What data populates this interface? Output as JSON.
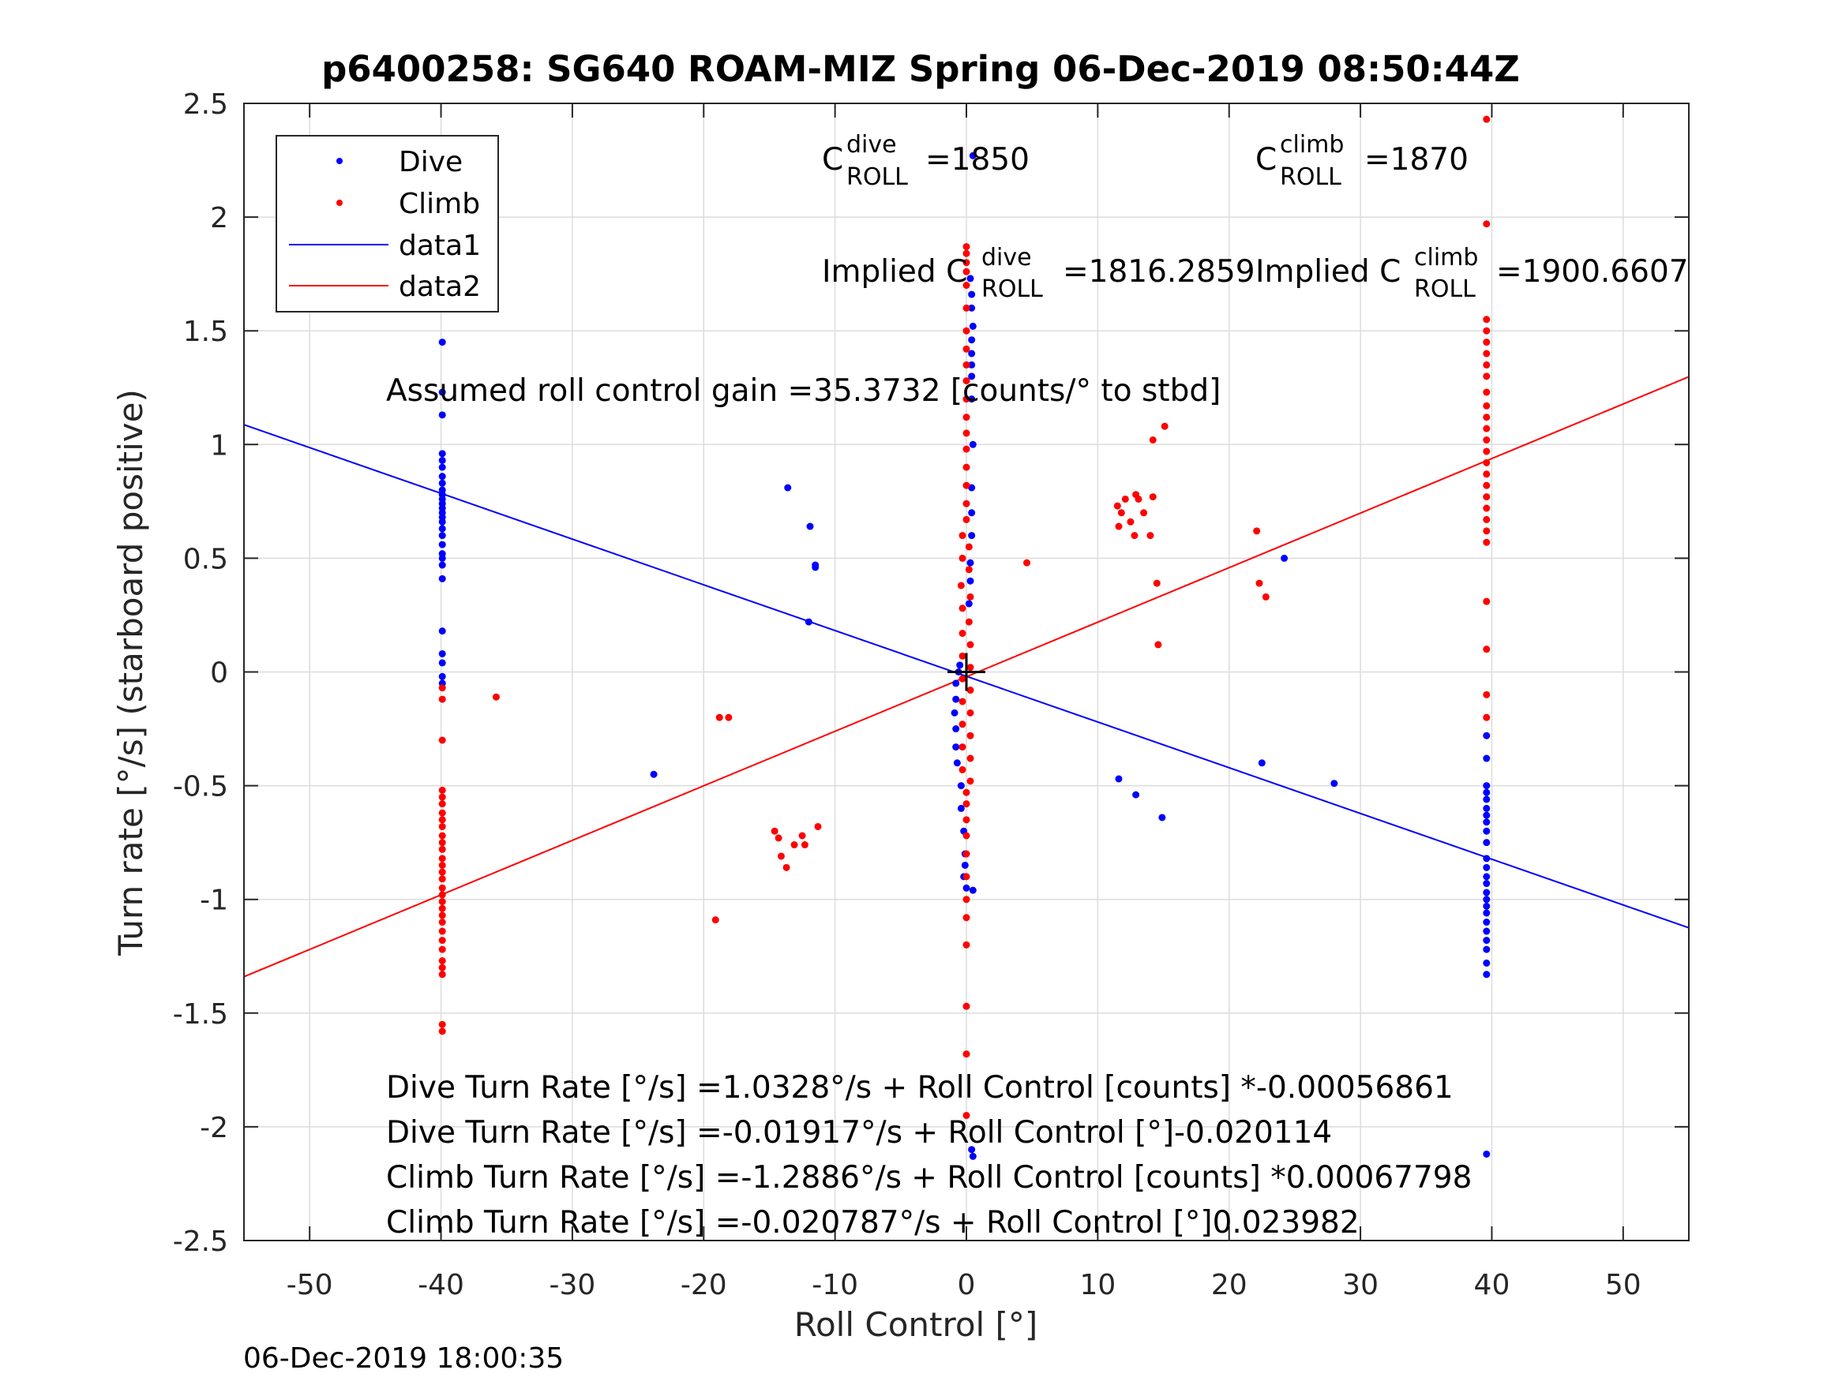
{
  "chart_data": {
    "type": "scatter",
    "title": "p6400258: SG640 ROAM-MIZ Spring 06-Dec-2019 08:50:44Z",
    "xlabel": "Roll Control [°]",
    "ylabel": "Turn rate [°/s] (starboard positive)",
    "xlim": [
      -55,
      55
    ],
    "ylim": [
      -2.5,
      2.5
    ],
    "xticks": [
      -50,
      -40,
      -30,
      -20,
      -10,
      0,
      10,
      20,
      30,
      40,
      50
    ],
    "yticks": [
      2.5,
      2,
      1.5,
      1,
      0.5,
      0,
      -0.5,
      -1,
      -1.5,
      -2,
      -2.5
    ],
    "grid": true,
    "legend_position": "top-left",
    "legend": [
      {
        "label": "Dive",
        "kind": "marker",
        "color": "#0000ff"
      },
      {
        "label": "Climb",
        "kind": "marker",
        "color": "#ff0000"
      },
      {
        "label": "data1",
        "kind": "line",
        "color": "#0000ff"
      },
      {
        "label": "data2",
        "kind": "line",
        "color": "#ff0000"
      }
    ],
    "series": [
      {
        "name": "Dive",
        "kind": "scatter",
        "color": "#0000ff",
        "points": [
          [
            -39.9,
            1.45
          ],
          [
            -39.9,
            1.23
          ],
          [
            -39.9,
            1.13
          ],
          [
            -39.9,
            0.96
          ],
          [
            -39.9,
            0.93
          ],
          [
            -39.9,
            0.9
          ],
          [
            -39.9,
            0.86
          ],
          [
            -39.9,
            0.83
          ],
          [
            -39.9,
            0.8
          ],
          [
            -39.9,
            0.78
          ],
          [
            -39.9,
            0.76
          ],
          [
            -39.9,
            0.74
          ],
          [
            -39.9,
            0.72
          ],
          [
            -39.9,
            0.7
          ],
          [
            -39.9,
            0.68
          ],
          [
            -39.9,
            0.66
          ],
          [
            -39.9,
            0.63
          ],
          [
            -39.9,
            0.6
          ],
          [
            -39.9,
            0.56
          ],
          [
            -39.9,
            0.52
          ],
          [
            -39.9,
            0.5
          ],
          [
            -39.9,
            0.47
          ],
          [
            -39.9,
            0.41
          ],
          [
            -39.9,
            0.18
          ],
          [
            -39.9,
            0.08
          ],
          [
            -39.9,
            0.04
          ],
          [
            -39.9,
            -0.05
          ],
          [
            -39.9,
            -0.02
          ],
          [
            -13.6,
            0.81
          ],
          [
            -11.9,
            0.64
          ],
          [
            -11.5,
            0.47
          ],
          [
            -11.5,
            0.46
          ],
          [
            -12.0,
            0.22
          ],
          [
            -23.8,
            -0.45
          ],
          [
            0.5,
            2.27
          ],
          [
            0.3,
            1.73
          ],
          [
            0.4,
            1.66
          ],
          [
            0.4,
            1.6
          ],
          [
            0.5,
            1.52
          ],
          [
            0.4,
            1.46
          ],
          [
            0.4,
            1.4
          ],
          [
            0.4,
            1.35
          ],
          [
            0.4,
            1.3
          ],
          [
            0.4,
            1.2
          ],
          [
            0.5,
            1.0
          ],
          [
            0.4,
            0.81
          ],
          [
            0.4,
            0.7
          ],
          [
            0.4,
            0.6
          ],
          [
            0.3,
            0.48
          ],
          [
            0.3,
            0.4
          ],
          [
            0.2,
            0.3
          ],
          [
            -0.5,
            0.03
          ],
          [
            -0.6,
            0.0
          ],
          [
            -0.8,
            -0.05
          ],
          [
            -0.8,
            -0.12
          ],
          [
            -0.9,
            -0.18
          ],
          [
            -0.8,
            -0.25
          ],
          [
            -0.8,
            -0.33
          ],
          [
            -0.7,
            -0.4
          ],
          [
            -0.4,
            -0.5
          ],
          [
            -0.4,
            -0.6
          ],
          [
            -0.2,
            -0.7
          ],
          [
            -0.1,
            -0.8
          ],
          [
            -0.2,
            -0.9
          ],
          [
            0.0,
            -0.95
          ],
          [
            0.5,
            -0.96
          ],
          [
            -0.1,
            -0.85
          ],
          [
            0.5,
            -2.13
          ],
          [
            0.4,
            -2.1
          ],
          [
            11.6,
            -0.47
          ],
          [
            12.9,
            -0.54
          ],
          [
            14.9,
            -0.64
          ],
          [
            24.2,
            0.5
          ],
          [
            22.5,
            -0.4
          ],
          [
            28.0,
            -0.49
          ],
          [
            39.6,
            -0.28
          ],
          [
            39.6,
            -0.38
          ],
          [
            39.6,
            -0.5
          ],
          [
            39.6,
            -0.53
          ],
          [
            39.6,
            -0.56
          ],
          [
            39.6,
            -0.6
          ],
          [
            39.6,
            -0.63
          ],
          [
            39.6,
            -0.66
          ],
          [
            39.6,
            -0.7
          ],
          [
            39.6,
            -0.75
          ],
          [
            39.6,
            -0.82
          ],
          [
            39.6,
            -0.86
          ],
          [
            39.6,
            -0.9
          ],
          [
            39.6,
            -0.93
          ],
          [
            39.6,
            -0.97
          ],
          [
            39.6,
            -1.0
          ],
          [
            39.6,
            -1.03
          ],
          [
            39.6,
            -1.06
          ],
          [
            39.6,
            -1.1
          ],
          [
            39.6,
            -1.14
          ],
          [
            39.6,
            -1.18
          ],
          [
            39.6,
            -1.22
          ],
          [
            39.6,
            -1.28
          ],
          [
            39.6,
            -1.33
          ],
          [
            39.6,
            -2.12
          ]
        ]
      },
      {
        "name": "Climb",
        "kind": "scatter",
        "color": "#ff0000",
        "points": [
          [
            -39.9,
            -0.3
          ],
          [
            -39.9,
            -0.52
          ],
          [
            -39.9,
            -0.55
          ],
          [
            -39.9,
            -0.58
          ],
          [
            -39.9,
            -0.62
          ],
          [
            -39.9,
            -0.65
          ],
          [
            -39.9,
            -0.68
          ],
          [
            -39.9,
            -0.72
          ],
          [
            -39.9,
            -0.75
          ],
          [
            -39.9,
            -0.78
          ],
          [
            -39.9,
            -0.82
          ],
          [
            -39.9,
            -0.85
          ],
          [
            -39.9,
            -0.88
          ],
          [
            -39.9,
            -0.91
          ],
          [
            -39.9,
            -0.95
          ],
          [
            -39.9,
            -0.98
          ],
          [
            -39.9,
            -1.01
          ],
          [
            -39.9,
            -1.04
          ],
          [
            -39.9,
            -1.07
          ],
          [
            -39.9,
            -1.1
          ],
          [
            -39.9,
            -1.14
          ],
          [
            -39.9,
            -1.18
          ],
          [
            -39.9,
            -1.22
          ],
          [
            -39.9,
            -1.27
          ],
          [
            -39.9,
            -1.3
          ],
          [
            -39.9,
            -1.33
          ],
          [
            -39.9,
            -1.55
          ],
          [
            -39.9,
            -1.58
          ],
          [
            -39.9,
            -0.12
          ],
          [
            -39.9,
            -0.07
          ],
          [
            -35.8,
            -0.11
          ],
          [
            -19.1,
            -1.09
          ],
          [
            -18.8,
            -0.2
          ],
          [
            -18.1,
            -0.2
          ],
          [
            -14.6,
            -0.7
          ],
          [
            -14.3,
            -0.73
          ],
          [
            -14.1,
            -0.81
          ],
          [
            -13.7,
            -0.86
          ],
          [
            -13.1,
            -0.76
          ],
          [
            -12.5,
            -0.72
          ],
          [
            -12.3,
            -0.76
          ],
          [
            -11.3,
            -0.68
          ],
          [
            0.0,
            1.87
          ],
          [
            0.0,
            1.84
          ],
          [
            0.0,
            1.8
          ],
          [
            0.0,
            1.76
          ],
          [
            0.0,
            1.7
          ],
          [
            0.0,
            1.6
          ],
          [
            0.0,
            1.5
          ],
          [
            0.0,
            1.42
          ],
          [
            0.0,
            1.35
          ],
          [
            0.0,
            1.28
          ],
          [
            0.0,
            1.2
          ],
          [
            0.0,
            1.12
          ],
          [
            0.0,
            1.05
          ],
          [
            0.0,
            0.98
          ],
          [
            0.0,
            0.9
          ],
          [
            0.0,
            0.82
          ],
          [
            0.0,
            0.74
          ],
          [
            0.0,
            0.67
          ],
          [
            -0.3,
            0.6
          ],
          [
            0.2,
            0.55
          ],
          [
            -0.3,
            0.5
          ],
          [
            0.2,
            0.45
          ],
          [
            -0.4,
            0.38
          ],
          [
            0.3,
            0.33
          ],
          [
            -0.3,
            0.28
          ],
          [
            0.2,
            0.22
          ],
          [
            -0.3,
            0.17
          ],
          [
            0.3,
            0.12
          ],
          [
            -0.3,
            0.07
          ],
          [
            0.3,
            0.02
          ],
          [
            -0.3,
            -0.03
          ],
          [
            0.3,
            -0.08
          ],
          [
            -0.3,
            -0.13
          ],
          [
            0.3,
            -0.18
          ],
          [
            -0.3,
            -0.23
          ],
          [
            0.3,
            -0.28
          ],
          [
            -0.3,
            -0.33
          ],
          [
            0.3,
            -0.38
          ],
          [
            -0.3,
            -0.43
          ],
          [
            0.3,
            -0.48
          ],
          [
            0.0,
            -0.53
          ],
          [
            0.0,
            -0.58
          ],
          [
            0.0,
            -0.65
          ],
          [
            0.0,
            -0.72
          ],
          [
            0.0,
            -0.8
          ],
          [
            0.0,
            -0.9
          ],
          [
            0.0,
            -1.0
          ],
          [
            0.0,
            -1.08
          ],
          [
            0.0,
            -1.2
          ],
          [
            0.0,
            -1.47
          ],
          [
            0.0,
            -1.68
          ],
          [
            0.0,
            -1.95
          ],
          [
            4.6,
            0.48
          ],
          [
            11.5,
            0.73
          ],
          [
            11.6,
            0.64
          ],
          [
            11.8,
            0.7
          ],
          [
            12.1,
            0.76
          ],
          [
            12.5,
            0.66
          ],
          [
            12.9,
            0.78
          ],
          [
            13.1,
            0.76
          ],
          [
            13.5,
            0.7
          ],
          [
            14.0,
            0.6
          ],
          [
            14.2,
            1.02
          ],
          [
            14.5,
            0.39
          ],
          [
            14.6,
            0.12
          ],
          [
            15.1,
            1.08
          ],
          [
            14.2,
            0.77
          ],
          [
            12.8,
            0.6
          ],
          [
            22.1,
            0.62
          ],
          [
            22.3,
            0.39
          ],
          [
            22.8,
            0.33
          ],
          [
            39.6,
            2.43
          ],
          [
            39.6,
            1.97
          ],
          [
            39.6,
            1.55
          ],
          [
            39.6,
            1.5
          ],
          [
            39.6,
            1.45
          ],
          [
            39.6,
            1.4
          ],
          [
            39.6,
            1.35
          ],
          [
            39.6,
            1.3
          ],
          [
            39.6,
            1.23
          ],
          [
            39.6,
            1.17
          ],
          [
            39.6,
            1.12
          ],
          [
            39.6,
            1.07
          ],
          [
            39.6,
            1.02
          ],
          [
            39.6,
            0.97
          ],
          [
            39.6,
            0.92
          ],
          [
            39.6,
            0.87
          ],
          [
            39.6,
            0.82
          ],
          [
            39.6,
            0.77
          ],
          [
            39.6,
            0.72
          ],
          [
            39.6,
            0.67
          ],
          [
            39.6,
            0.62
          ],
          [
            39.6,
            0.57
          ],
          [
            39.6,
            0.31
          ],
          [
            39.6,
            0.1
          ],
          [
            39.6,
            -0.1
          ],
          [
            39.6,
            -0.2
          ]
        ]
      },
      {
        "name": "data1",
        "kind": "line",
        "color": "#0000ff",
        "x": [
          -55,
          55
        ],
        "y": [
          1.087,
          -1.125
        ]
      },
      {
        "name": "data2",
        "kind": "line",
        "color": "#ff0000",
        "x": [
          -55,
          55
        ],
        "y": [
          -1.34,
          1.298
        ]
      }
    ],
    "crosshair": {
      "x": 0,
      "y": 0,
      "color": "#000000"
    },
    "annotations": {
      "cdive_main": "C",
      "cdive_sup": "dive",
      "cdive_sub": "ROLL",
      "cdive_value": "=1850",
      "cclimb_main": "C",
      "cclimb_sup": "climb",
      "cclimb_sub": "ROLL",
      "cclimb_value": "=1870",
      "implied_dive_prefix": "Implied C",
      "implied_dive_sup": "dive",
      "implied_dive_sub": "ROLL",
      "implied_dive_value": "=1816.2859",
      "implied_climb_prefix": "Implied C",
      "implied_climb_sup": "climb",
      "implied_climb_sub": "ROLL",
      "implied_climb_value": "=1900.6607",
      "gain": "Assumed roll control gain =35.3732 [counts/° to stbd]",
      "eq1": "Dive Turn Rate [°/s] =1.0328°/s + Roll Control [counts] *-0.00056861",
      "eq2": "Dive Turn Rate [°/s] =-0.01917°/s + Roll Control [°]-0.020114",
      "eq3": "Climb Turn Rate [°/s] =-1.2886°/s + Roll Control [counts] *0.00067798",
      "eq4": "Climb Turn Rate [°/s] =-0.020787°/s + Roll Control [°]0.023982"
    }
  },
  "footer": {
    "timestamp": "06-Dec-2019 18:00:35"
  }
}
